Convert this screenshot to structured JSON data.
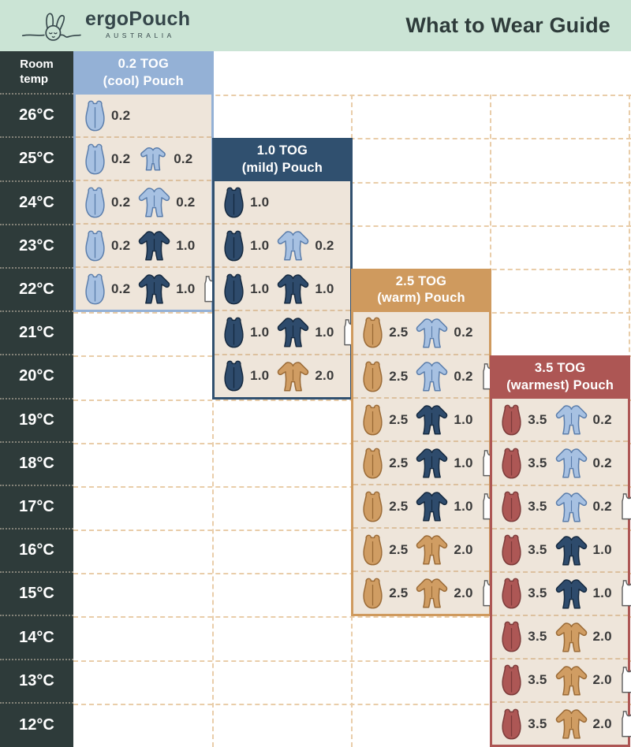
{
  "header": {
    "brand": "ergoPouch",
    "brand_sub": "AUSTRALIA",
    "title": "What to Wear Guide",
    "bg_color": "#cbe4d5",
    "text_color": "#2e3b3a"
  },
  "temp_column": {
    "header_line1": "Room",
    "header_line2": "temp",
    "bg_color": "#2e3b3a",
    "temps": [
      "26°C",
      "25°C",
      "24°C",
      "23°C",
      "22°C",
      "21°C",
      "20°C",
      "19°C",
      "18°C",
      "17°C",
      "16°C",
      "15°C",
      "14°C",
      "13°C",
      "12°C"
    ]
  },
  "colors": {
    "panel_body": "#eee5da",
    "grid_dash": "#e9cda9",
    "row_dash": "#dcc09e",
    "lightblue": "#94b1d6",
    "navy": "#30506f",
    "tan": "#cf9a5e",
    "maroon": "#ad5654"
  },
  "panels": [
    {
      "id": "tog-0-2",
      "title_line1": "0.2 TOG",
      "title_line2": "(cool) Pouch",
      "accent": "#94b1d6",
      "rows": [
        {
          "temp": "26°C",
          "items": [
            {
              "icon": "pouch",
              "color": "lightblue",
              "value": "0.2"
            }
          ]
        },
        {
          "temp": "25°C",
          "items": [
            {
              "icon": "pouch",
              "color": "lightblue",
              "value": "0.2"
            },
            {
              "icon": "romper",
              "color": "lightblue",
              "value": "0.2"
            }
          ]
        },
        {
          "temp": "24°C",
          "items": [
            {
              "icon": "pouch",
              "color": "lightblue",
              "value": "0.2"
            },
            {
              "icon": "sleepsuit",
              "color": "lightblue",
              "value": "0.2"
            }
          ]
        },
        {
          "temp": "23°C",
          "items": [
            {
              "icon": "pouch",
              "color": "lightblue",
              "value": "0.2"
            },
            {
              "icon": "sleepsuit",
              "color": "navy",
              "value": "1.0"
            }
          ]
        },
        {
          "temp": "22°C",
          "items": [
            {
              "icon": "pouch",
              "color": "lightblue",
              "value": "0.2"
            },
            {
              "icon": "sleepsuit",
              "color": "navy",
              "value": "1.0"
            },
            {
              "icon": "singlet",
              "color": "white",
              "value": ""
            }
          ]
        }
      ]
    },
    {
      "id": "tog-1-0",
      "title_line1": "1.0 TOG",
      "title_line2": "(mild) Pouch",
      "accent": "#30506f",
      "rows": [
        {
          "temp": "24°C",
          "items": [
            {
              "icon": "pouch",
              "color": "navy",
              "value": "1.0"
            }
          ]
        },
        {
          "temp": "23°C",
          "items": [
            {
              "icon": "pouch",
              "color": "navy",
              "value": "1.0"
            },
            {
              "icon": "sleepsuit",
              "color": "lightblue",
              "value": "0.2"
            }
          ]
        },
        {
          "temp": "22°C",
          "items": [
            {
              "icon": "pouch",
              "color": "navy",
              "value": "1.0"
            },
            {
              "icon": "sleepsuit",
              "color": "navy",
              "value": "1.0"
            }
          ]
        },
        {
          "temp": "21°C",
          "items": [
            {
              "icon": "pouch",
              "color": "navy",
              "value": "1.0"
            },
            {
              "icon": "sleepsuit",
              "color": "navy",
              "value": "1.0"
            },
            {
              "icon": "singlet",
              "color": "white",
              "value": ""
            }
          ]
        },
        {
          "temp": "20°C",
          "items": [
            {
              "icon": "pouch",
              "color": "navy",
              "value": "1.0"
            },
            {
              "icon": "sleepsuit",
              "color": "tan",
              "value": "2.0"
            }
          ]
        }
      ]
    },
    {
      "id": "tog-2-5",
      "title_line1": "2.5 TOG",
      "title_line2": "(warm) Pouch",
      "accent": "#cf9a5e",
      "rows": [
        {
          "temp": "21°C",
          "items": [
            {
              "icon": "pouch",
              "color": "tan",
              "value": "2.5"
            },
            {
              "icon": "sleepsuit",
              "color": "lightblue",
              "value": "0.2"
            }
          ]
        },
        {
          "temp": "20°C",
          "items": [
            {
              "icon": "pouch",
              "color": "tan",
              "value": "2.5"
            },
            {
              "icon": "sleepsuit",
              "color": "lightblue",
              "value": "0.2"
            },
            {
              "icon": "singlet",
              "color": "white",
              "value": ""
            }
          ]
        },
        {
          "temp": "19°C",
          "items": [
            {
              "icon": "pouch",
              "color": "tan",
              "value": "2.5"
            },
            {
              "icon": "sleepsuit",
              "color": "navy",
              "value": "1.0"
            }
          ]
        },
        {
          "temp": "18°C",
          "items": [
            {
              "icon": "pouch",
              "color": "tan",
              "value": "2.5"
            },
            {
              "icon": "sleepsuit",
              "color": "navy",
              "value": "1.0"
            },
            {
              "icon": "singlet",
              "color": "white",
              "value": ""
            }
          ]
        },
        {
          "temp": "17°C",
          "items": [
            {
              "icon": "pouch",
              "color": "tan",
              "value": "2.5"
            },
            {
              "icon": "sleepsuit",
              "color": "navy",
              "value": "1.0"
            },
            {
              "icon": "singlet",
              "color": "white",
              "value": ""
            }
          ]
        },
        {
          "temp": "16°C",
          "items": [
            {
              "icon": "pouch",
              "color": "tan",
              "value": "2.5"
            },
            {
              "icon": "sleepsuit",
              "color": "tan",
              "value": "2.0"
            }
          ]
        },
        {
          "temp": "15°C",
          "items": [
            {
              "icon": "pouch",
              "color": "tan",
              "value": "2.5"
            },
            {
              "icon": "sleepsuit",
              "color": "tan",
              "value": "2.0"
            },
            {
              "icon": "singlet",
              "color": "white",
              "value": ""
            }
          ]
        }
      ]
    },
    {
      "id": "tog-3-5",
      "title_line1": "3.5 TOG",
      "title_line2": "(warmest) Pouch",
      "accent": "#ad5654",
      "rows": [
        {
          "temp": "19°C",
          "items": [
            {
              "icon": "pouch",
              "color": "maroon",
              "value": "3.5"
            },
            {
              "icon": "sleepsuit",
              "color": "lightblue",
              "value": "0.2"
            }
          ]
        },
        {
          "temp": "18°C",
          "items": [
            {
              "icon": "pouch",
              "color": "maroon",
              "value": "3.5"
            },
            {
              "icon": "sleepsuit",
              "color": "lightblue",
              "value": "0.2"
            }
          ]
        },
        {
          "temp": "17°C",
          "items": [
            {
              "icon": "pouch",
              "color": "maroon",
              "value": "3.5"
            },
            {
              "icon": "sleepsuit",
              "color": "lightblue",
              "value": "0.2"
            },
            {
              "icon": "singlet",
              "color": "white",
              "value": ""
            }
          ]
        },
        {
          "temp": "16°C",
          "items": [
            {
              "icon": "pouch",
              "color": "maroon",
              "value": "3.5"
            },
            {
              "icon": "sleepsuit",
              "color": "navy",
              "value": "1.0"
            }
          ]
        },
        {
          "temp": "15°C",
          "items": [
            {
              "icon": "pouch",
              "color": "maroon",
              "value": "3.5"
            },
            {
              "icon": "sleepsuit",
              "color": "navy",
              "value": "1.0"
            },
            {
              "icon": "singlet",
              "color": "white",
              "value": ""
            }
          ]
        },
        {
          "temp": "14°C",
          "items": [
            {
              "icon": "pouch",
              "color": "maroon",
              "value": "3.5"
            },
            {
              "icon": "sleepsuit",
              "color": "tan",
              "value": "2.0"
            }
          ]
        },
        {
          "temp": "13°C",
          "items": [
            {
              "icon": "pouch",
              "color": "maroon",
              "value": "3.5"
            },
            {
              "icon": "sleepsuit",
              "color": "tan",
              "value": "2.0"
            },
            {
              "icon": "singlet",
              "color": "white",
              "value": ""
            }
          ]
        },
        {
          "temp": "12°C",
          "items": [
            {
              "icon": "pouch",
              "color": "maroon",
              "value": "3.5"
            },
            {
              "icon": "sleepsuit",
              "color": "tan",
              "value": "2.0"
            },
            {
              "icon": "singlet",
              "color": "white",
              "value": ""
            }
          ]
        }
      ]
    }
  ],
  "chart_data": {
    "type": "table",
    "title": "What to Wear Guide",
    "row_header": "Room temp",
    "temperatures_c": [
      26,
      25,
      24,
      23,
      22,
      21,
      20,
      19,
      18,
      17,
      16,
      15,
      14,
      13,
      12
    ],
    "series": [
      {
        "name": "0.2 TOG (cool) Pouch",
        "outfits": {
          "26": "0.2 pouch",
          "25": "0.2 pouch + 0.2 romper",
          "24": "0.2 pouch + 0.2 sleepsuit",
          "23": "0.2 pouch + 1.0 sleepsuit",
          "22": "0.2 pouch + 1.0 sleepsuit + singlet"
        }
      },
      {
        "name": "1.0 TOG (mild) Pouch",
        "outfits": {
          "24": "1.0 pouch",
          "23": "1.0 pouch + 0.2 sleepsuit",
          "22": "1.0 pouch + 1.0 sleepsuit",
          "21": "1.0 pouch + 1.0 sleepsuit + singlet",
          "20": "1.0 pouch + 2.0 sleepsuit"
        }
      },
      {
        "name": "2.5 TOG (warm) Pouch",
        "outfits": {
          "21": "2.5 pouch + 0.2 sleepsuit",
          "20": "2.5 pouch + 0.2 sleepsuit + singlet",
          "19": "2.5 pouch + 1.0 sleepsuit",
          "18": "2.5 pouch + 1.0 sleepsuit + singlet",
          "17": "2.5 pouch + 1.0 sleepsuit + singlet",
          "16": "2.5 pouch + 2.0 sleepsuit",
          "15": "2.5 pouch + 2.0 sleepsuit + singlet"
        }
      },
      {
        "name": "3.5 TOG (warmest) Pouch",
        "outfits": {
          "19": "3.5 pouch + 0.2 sleepsuit",
          "18": "3.5 pouch + 0.2 sleepsuit",
          "17": "3.5 pouch + 0.2 sleepsuit + singlet",
          "16": "3.5 pouch + 1.0 sleepsuit",
          "15": "3.5 pouch + 1.0 sleepsuit + singlet",
          "14": "3.5 pouch + 2.0 sleepsuit",
          "13": "3.5 pouch + 2.0 sleepsuit + singlet",
          "12": "3.5 pouch + 2.0 sleepsuit + singlet"
        }
      }
    ]
  }
}
